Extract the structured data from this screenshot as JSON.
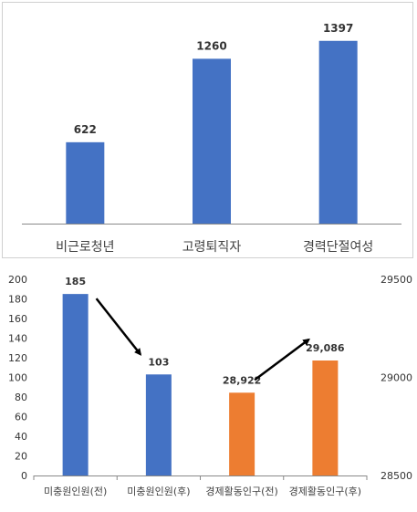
{
  "colors": {
    "bar_blue": "#4472C4",
    "bar_orange": "#ED7D31",
    "axis": "#888888",
    "text": "#333333",
    "label": "#404040",
    "arrow": "#000000"
  },
  "chart_data": [
    {
      "type": "bar",
      "categories": [
        "비근로청년",
        "고령퇴직자",
        "경력단절여성"
      ],
      "values": [
        622,
        1260,
        1397
      ],
      "data_labels": [
        "622",
        "1260",
        "1397"
      ],
      "ylim": [
        0,
        1500
      ],
      "y_axis_visible": false,
      "grid": false,
      "legend": "none"
    },
    {
      "type": "bar",
      "categories": [
        "미충원인원(전)",
        "미충원인원(후)",
        "경제활동인구(전)",
        "경제활동인구(후)"
      ],
      "series": [
        {
          "axis": "left",
          "color": "#4472C4",
          "values": [
            185,
            103,
            null,
            null
          ],
          "data_labels": [
            "185",
            "103",
            "",
            ""
          ]
        },
        {
          "axis": "right",
          "color": "#ED7D31",
          "values": [
            null,
            null,
            28922,
            29086
          ],
          "data_labels": [
            "",
            "",
            "28,922",
            "29,086"
          ]
        }
      ],
      "y_left": {
        "min": 0,
        "max": 200,
        "step": 20,
        "ticks": [
          "0",
          "20",
          "40",
          "60",
          "80",
          "100",
          "120",
          "140",
          "160",
          "180",
          "200"
        ]
      },
      "y_right": {
        "min": 28500,
        "max": 29500,
        "ticks": [
          "28500",
          "29000",
          "29500"
        ]
      },
      "annotations": [
        "arrow from 미충원인원(전) down to 미충원인원(후)",
        "arrow from 경제활동인구(전) up to 경제활동인구(후)"
      ],
      "grid": false,
      "legend": "none"
    }
  ]
}
